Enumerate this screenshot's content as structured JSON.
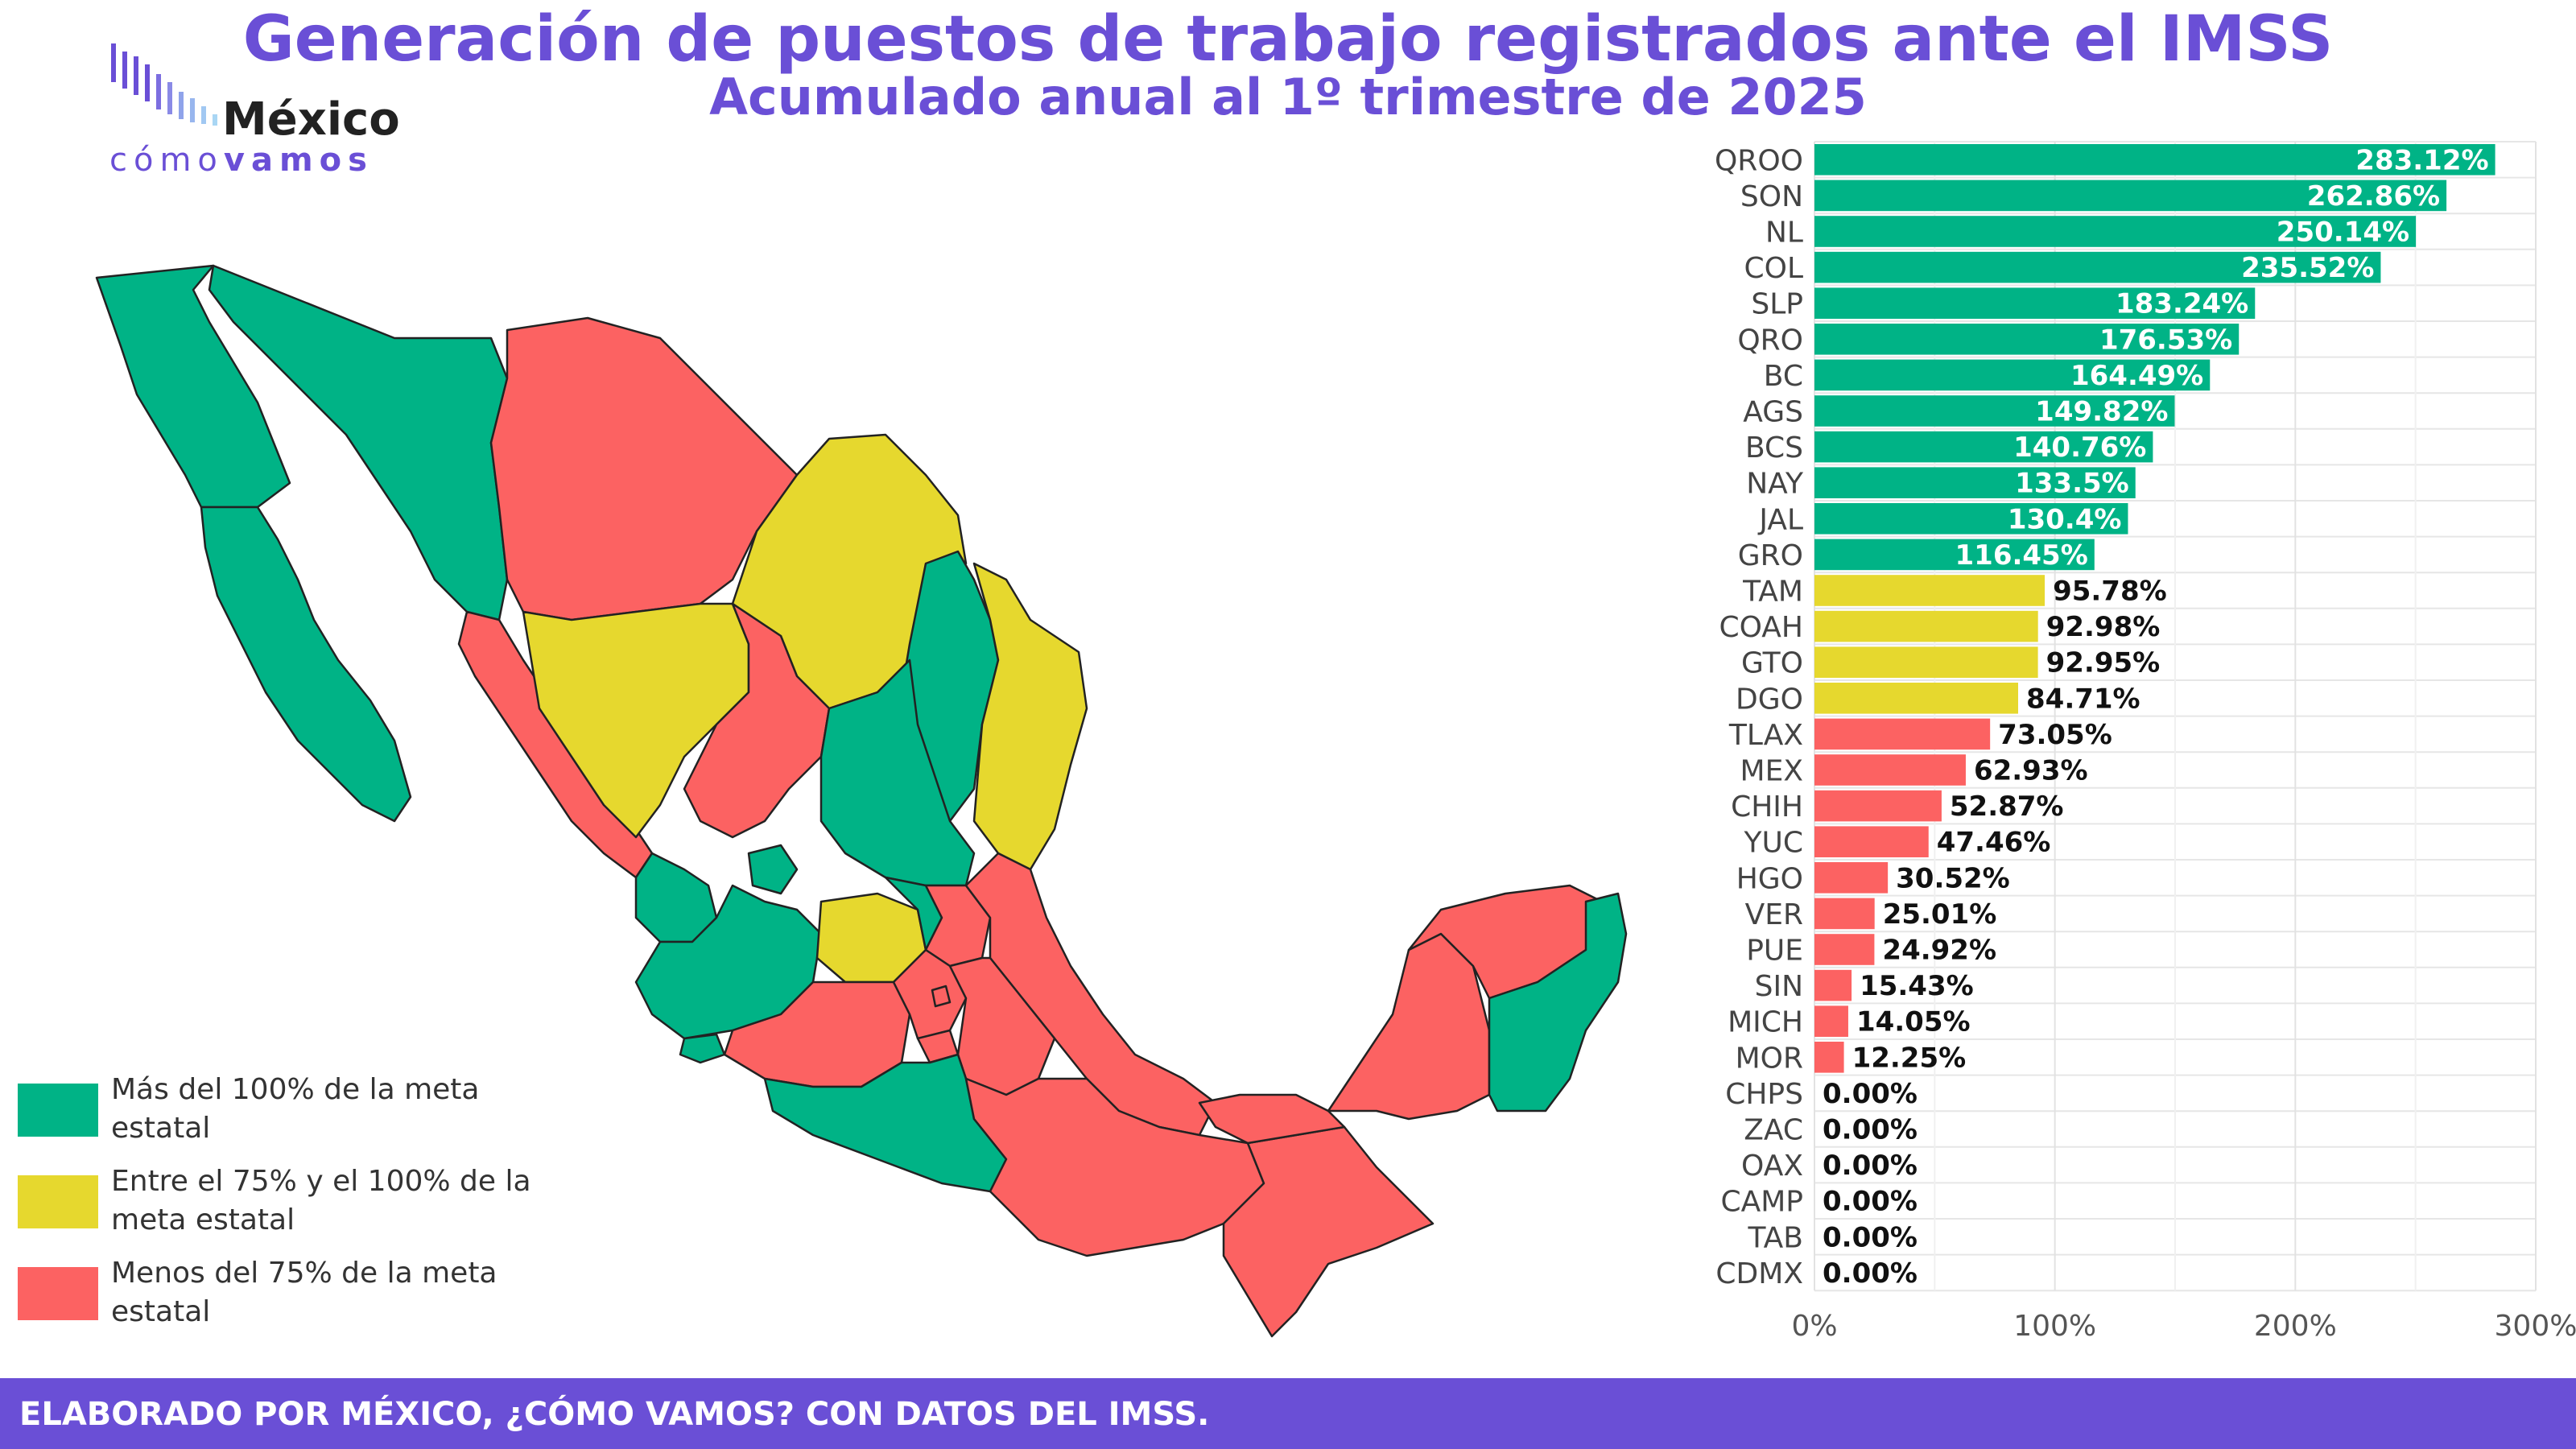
{
  "header": {
    "title": "Generación de puestos de trabajo registrados ante el IMSS",
    "subtitle": "Acumulado anual al 1º trimestre de 2025"
  },
  "logo": {
    "name_top": "México",
    "name_bottom_light": "cómo",
    "name_bottom_bold": "vamos"
  },
  "colors": {
    "above": "#00b386",
    "between": "#e6d82e",
    "below": "#fc6262",
    "accent": "#6a4fd6"
  },
  "legend": [
    {
      "label": "Más del 100% de la meta estatal",
      "color": "#00b386"
    },
    {
      "label": "Entre el 75% y el 100% de la meta estatal",
      "color": "#e6d82e"
    },
    {
      "label": "Menos del 75% de la meta estatal",
      "color": "#fc6262"
    }
  ],
  "chart_data": {
    "type": "bar",
    "orientation": "horizontal",
    "title": "Generación de puestos de trabajo registrados ante el IMSS",
    "subtitle": "Acumulado anual al 1º trimestre de 2025",
    "xlim": [
      0,
      300
    ],
    "x_ticks": [
      "0%",
      "100%",
      "200%",
      "300%"
    ],
    "grid": true,
    "categories": [
      "QROO",
      "SON",
      "NL",
      "COL",
      "SLP",
      "QRO",
      "BC",
      "AGS",
      "BCS",
      "NAY",
      "JAL",
      "GRO",
      "TAM",
      "COAH",
      "GTO",
      "DGO",
      "TLAX",
      "MEX",
      "CHIH",
      "YUC",
      "HGO",
      "VER",
      "PUE",
      "SIN",
      "MICH",
      "MOR",
      "CHPS",
      "ZAC",
      "OAX",
      "CAMP",
      "TAB",
      "CDMX"
    ],
    "values": [
      283.12,
      262.86,
      250.14,
      235.52,
      183.24,
      176.53,
      164.49,
      149.82,
      140.76,
      133.5,
      130.4,
      116.45,
      95.78,
      92.98,
      92.95,
      84.71,
      73.05,
      62.93,
      52.87,
      47.46,
      30.52,
      25.01,
      24.92,
      15.43,
      14.05,
      12.25,
      0.0,
      0.0,
      0.0,
      0.0,
      0.0,
      0.0
    ],
    "labels": [
      "283.12%",
      "262.86%",
      "250.14%",
      "235.52%",
      "183.24%",
      "176.53%",
      "164.49%",
      "149.82%",
      "140.76%",
      "133.5%",
      "130.4%",
      "116.45%",
      "95.78%",
      "92.98%",
      "92.95%",
      "84.71%",
      "73.05%",
      "62.93%",
      "52.87%",
      "47.46%",
      "30.52%",
      "25.01%",
      "24.92%",
      "15.43%",
      "14.05%",
      "12.25%",
      "0.00%",
      "0.00%",
      "0.00%",
      "0.00%",
      "0.00%",
      "0.00%"
    ]
  },
  "footer": {
    "text": "ELABORADO POR MÉXICO, ¿CÓMO VAMOS? CON DATOS DEL IMSS."
  }
}
